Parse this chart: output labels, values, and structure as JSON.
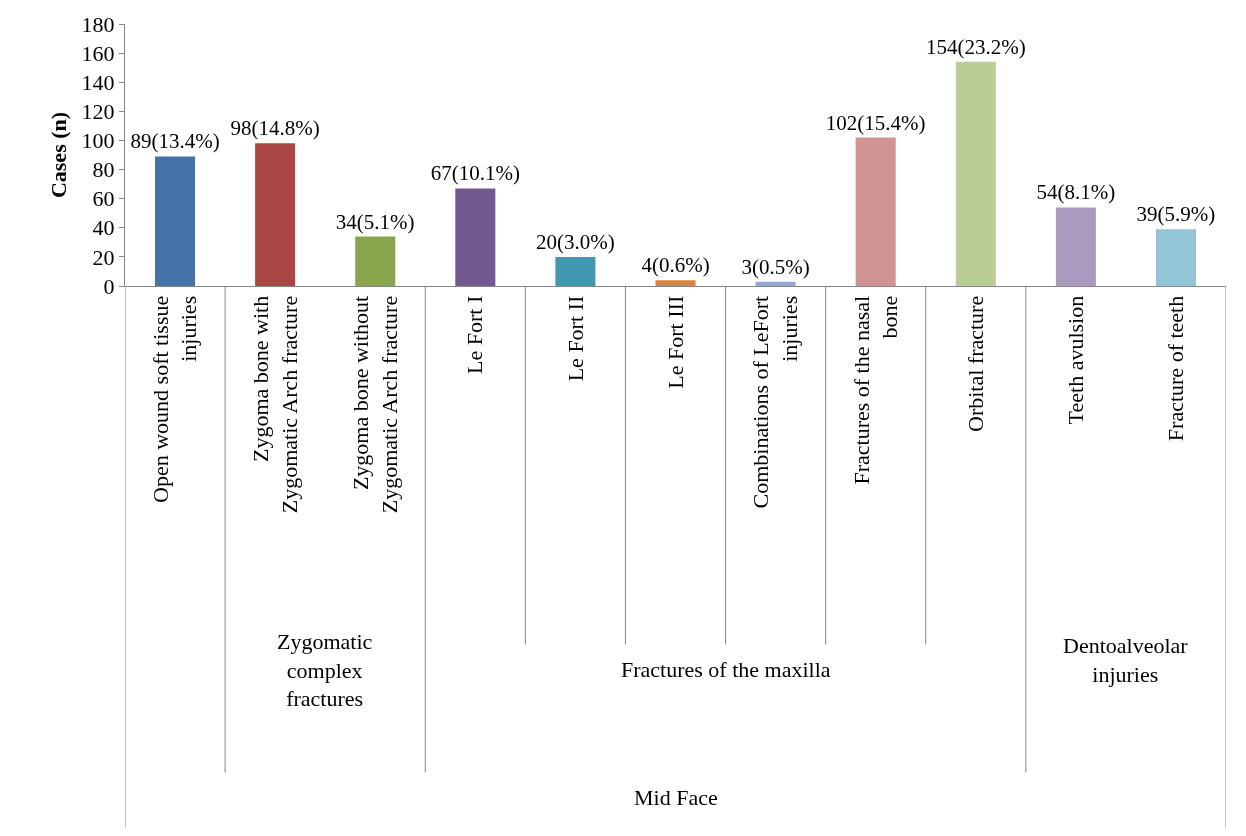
{
  "chart_data": {
    "type": "bar",
    "ylabel": "Cases (n)",
    "categories": [
      "Open wound soft tissue injuries",
      "Zygoma bone with Zygomatic Arch fracture",
      "Zygoma bone without Zygomatic Arch fracture",
      "Le Fort I",
      "Le Fort II",
      "Le Fort III",
      "Combinations of LeFort injuries",
      "Fractures of the nasal bone",
      "Orbital fracture",
      "Teeth avulsion",
      "Fracture of teeth"
    ],
    "values": [
      89,
      98,
      34,
      67,
      20,
      4,
      3,
      102,
      154,
      54,
      39
    ],
    "value_labels": [
      "89(13.4%)",
      "98(14.8%)",
      "34(5.1%)",
      "67(10.1%)",
      "20(3.0%)",
      "4(0.6%)",
      "3(0.5%)",
      "102(15.4%)",
      "154(23.2%)",
      "54(8.1%)",
      "39(5.9%)"
    ],
    "colors": [
      "#4572a7",
      "#aa4643",
      "#89a54e",
      "#71588f",
      "#4198af",
      "#db843d",
      "#93a9cf",
      "#d19392",
      "#b9cd96",
      "#a99bbd",
      "#92c5d6"
    ],
    "ylim": [
      0,
      180
    ],
    "yticks": [
      0,
      20,
      40,
      60,
      80,
      100,
      120,
      140,
      160,
      180
    ],
    "legend": false,
    "annotations": [
      "Zygomatic complex fractures",
      "Fractures of the maxilla",
      "Dentoalveolar injuries",
      "Mid Face"
    ]
  }
}
